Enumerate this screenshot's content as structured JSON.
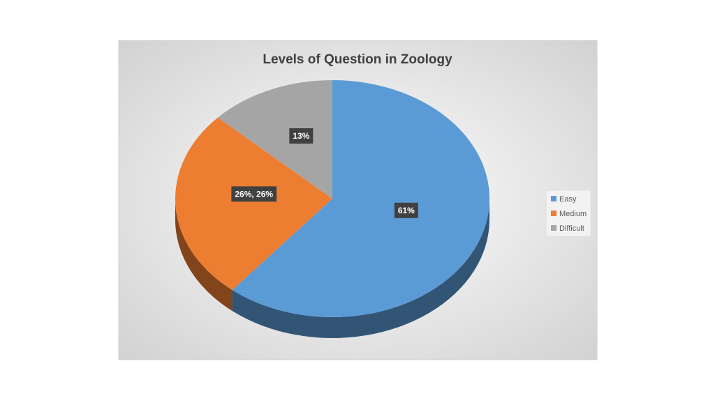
{
  "chart_data": {
    "type": "pie",
    "title": "Levels of Question in Zoology",
    "categories": [
      "Easy",
      "Medium",
      "Difficult"
    ],
    "values": [
      61,
      26,
      13
    ],
    "value_labels": [
      "61%",
      "26%, 26%",
      "13%"
    ],
    "colors": [
      "#5b9bd5",
      "#ed7d31",
      "#a5a5a5"
    ],
    "legend": "right"
  }
}
